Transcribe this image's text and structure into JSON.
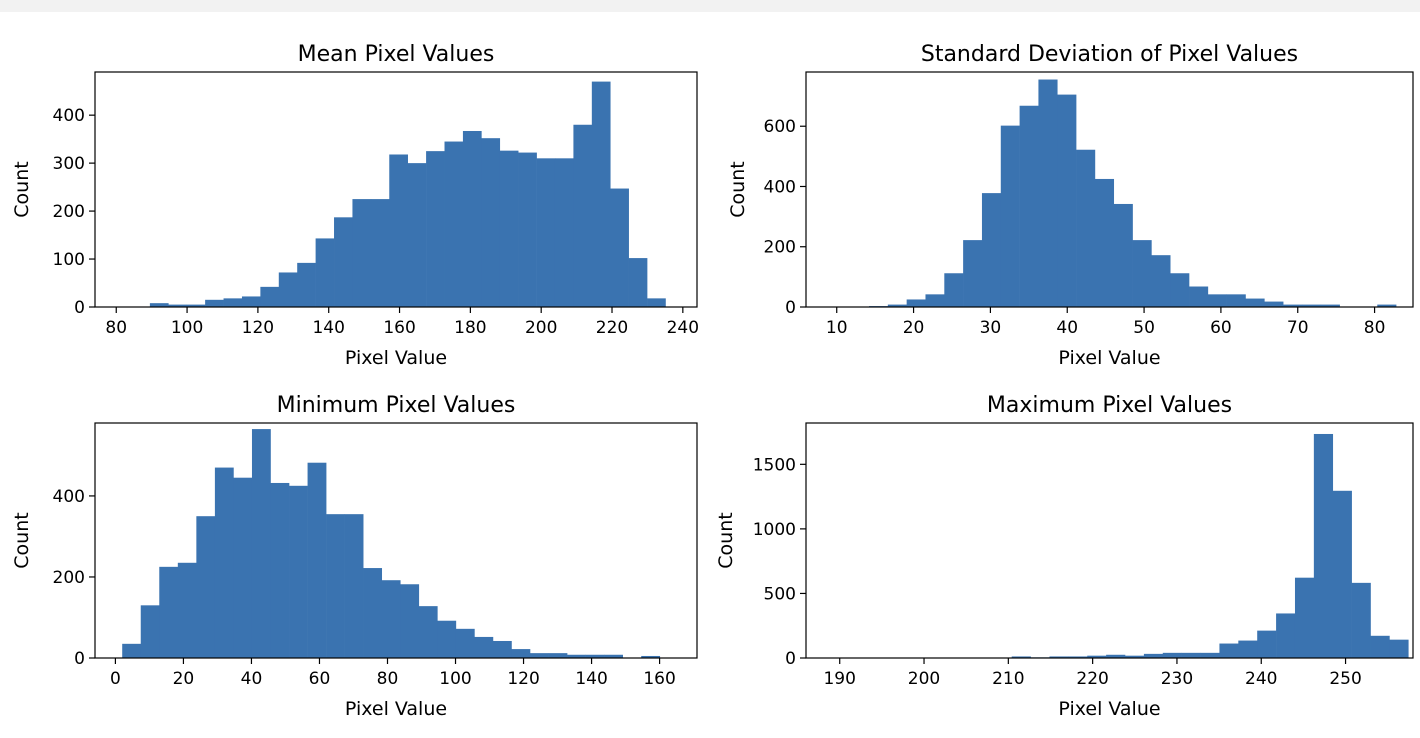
{
  "chart_data": [
    {
      "type": "bar",
      "title": "Mean Pixel Values",
      "xlabel": "Pixel Value",
      "ylabel": "Count",
      "xlim": [
        74,
        244
      ],
      "ylim": [
        0,
        490
      ],
      "xticks": [
        80,
        100,
        120,
        140,
        160,
        180,
        200,
        220,
        240
      ],
      "yticks": [
        0,
        100,
        200,
        300,
        400
      ],
      "bin_start": 89.5,
      "bin_width": 5.2,
      "values": [
        8,
        5,
        5,
        15,
        18,
        22,
        42,
        72,
        92,
        143,
        187,
        225,
        225,
        318,
        300,
        325,
        345,
        367,
        352,
        326,
        322,
        310,
        310,
        380,
        470,
        247,
        102,
        18
      ]
    },
    {
      "type": "bar",
      "title": "Standard Deviation of Pixel Values",
      "xlabel": "Pixel Value",
      "ylabel": "Count",
      "xlim": [
        6,
        85
      ],
      "ylim": [
        0,
        780
      ],
      "xticks": [
        10,
        20,
        30,
        40,
        50,
        60,
        70,
        80
      ],
      "yticks": [
        0,
        200,
        400,
        600
      ],
      "bin_start": 9.3,
      "bin_width": 2.45,
      "values": [
        0,
        0,
        3,
        8,
        25,
        42,
        112,
        222,
        378,
        602,
        668,
        755,
        705,
        522,
        425,
        342,
        222,
        172,
        112,
        68,
        42,
        42,
        28,
        18,
        8,
        8,
        8,
        0,
        0,
        8
      ]
    },
    {
      "type": "bar",
      "title": "Minimum Pixel Values",
      "xlabel": "Pixel Value",
      "ylabel": "Count",
      "xlim": [
        -6,
        171
      ],
      "ylim": [
        0,
        580
      ],
      "xticks": [
        0,
        20,
        40,
        60,
        80,
        100,
        120,
        140,
        160
      ],
      "yticks": [
        0,
        200,
        400
      ],
      "bin_start": 2,
      "bin_width": 5.45,
      "values": [
        35,
        130,
        225,
        235,
        350,
        470,
        445,
        565,
        432,
        425,
        482,
        355,
        355,
        222,
        192,
        182,
        128,
        92,
        72,
        52,
        42,
        22,
        12,
        12,
        8,
        8,
        8,
        0,
        5
      ]
    },
    {
      "type": "bar",
      "title": "Maximum Pixel Values",
      "xlabel": "Pixel Value",
      "ylabel": "Count",
      "xlim": [
        186,
        258
      ],
      "ylim": [
        0,
        1820
      ],
      "xticks": [
        190,
        200,
        210,
        220,
        230,
        240,
        250
      ],
      "yticks": [
        0,
        500,
        1000,
        1500
      ],
      "bin_start": 188,
      "bin_width": 2.24,
      "values": [
        0,
        0,
        0,
        0,
        0,
        0,
        0,
        0,
        0,
        0,
        12,
        5,
        12,
        12,
        18,
        25,
        18,
        32,
        40,
        40,
        40,
        112,
        135,
        212,
        345,
        622,
        1735,
        1295,
        582,
        172,
        142
      ]
    }
  ]
}
